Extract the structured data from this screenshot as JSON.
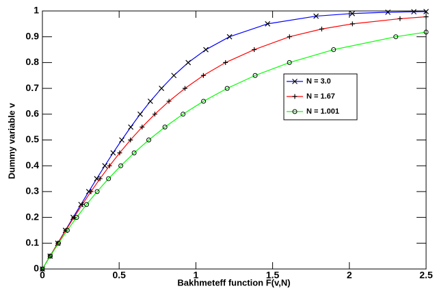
{
  "chart_data": {
    "type": "line",
    "x_label": "Bakhmeteff function F(v,N)",
    "y_label": "Dummy variable v",
    "xlim": [
      0,
      2.5
    ],
    "xticks": [
      0,
      0.5,
      1,
      1.5,
      2,
      2.5
    ],
    "ylim": [
      0,
      1
    ],
    "yticks": [
      0,
      0.1,
      0.2,
      0.3,
      0.4,
      0.5,
      0.6,
      0.7,
      0.8,
      0.9,
      1
    ],
    "legend": "center right",
    "series": [
      {
        "name": "N = 3.0",
        "color": "#0000ff",
        "marker": "x",
        "x": [
          0,
          0.05,
          0.1,
          0.1502,
          0.2004,
          0.251,
          0.302,
          0.3538,
          0.4067,
          0.4606,
          0.517,
          0.5756,
          0.637,
          0.7033,
          0.776,
          0.8565,
          0.95,
          1.065,
          1.219,
          1.467,
          1.783,
          2.019,
          2.251,
          2.42,
          2.5
        ],
        "values": [
          0,
          0.05,
          0.1,
          0.15,
          0.2,
          0.25,
          0.3,
          0.35,
          0.4,
          0.45,
          0.5,
          0.55,
          0.6,
          0.65,
          0.7,
          0.75,
          0.8,
          0.85,
          0.9,
          0.95,
          0.98,
          0.99,
          0.995,
          0.997,
          0.9976
        ]
      },
      {
        "name": "N = 1.67",
        "color": "#ff0000",
        "marker": "+",
        "x": [
          0,
          0.05,
          0.1008,
          0.1524,
          0.2053,
          0.2599,
          0.3164,
          0.3754,
          0.4375,
          0.5034,
          0.5737,
          0.6496,
          0.7326,
          0.8247,
          0.929,
          1.049,
          1.193,
          1.38,
          1.61,
          1.82,
          2.02,
          2.33,
          2.5
        ],
        "values": [
          0,
          0.05,
          0.1,
          0.15,
          0.2,
          0.25,
          0.3,
          0.35,
          0.4,
          0.45,
          0.5,
          0.55,
          0.6,
          0.65,
          0.7,
          0.75,
          0.8,
          0.85,
          0.9,
          0.93,
          0.95,
          0.97,
          0.9775
        ]
      },
      {
        "name": "N = 1.001",
        "color": "#00ff00",
        "marker": "o",
        "x": [
          0,
          0.0513,
          0.1054,
          0.1625,
          0.2231,
          0.2877,
          0.3567,
          0.4308,
          0.5108,
          0.5978,
          0.6931,
          0.7985,
          0.9163,
          1.0498,
          1.204,
          1.3863,
          1.6094,
          1.8971,
          2.3026,
          2.5
        ],
        "values": [
          0,
          0.05,
          0.1,
          0.15,
          0.2,
          0.25,
          0.3,
          0.35,
          0.4,
          0.45,
          0.5,
          0.55,
          0.6,
          0.65,
          0.7,
          0.75,
          0.8,
          0.85,
          0.9,
          0.918
        ]
      }
    ]
  }
}
